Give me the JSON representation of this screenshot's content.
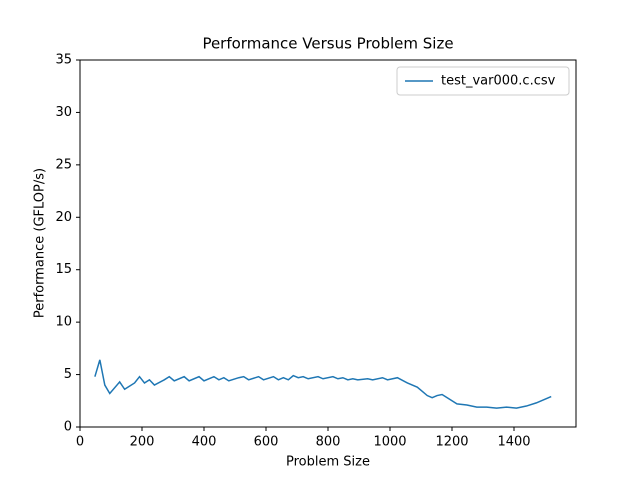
{
  "chart_data": {
    "type": "line",
    "title": "Performance Versus Problem Size",
    "x_label": "Problem Size",
    "y_label": "Performance (GFLOP/s)",
    "x": [
      48,
      64,
      80,
      96,
      128,
      144,
      176,
      192,
      208,
      224,
      240,
      272,
      288,
      304,
      336,
      352,
      384,
      400,
      432,
      448,
      464,
      480,
      512,
      528,
      544,
      576,
      592,
      624,
      640,
      656,
      672,
      688,
      704,
      720,
      736,
      768,
      784,
      816,
      832,
      848,
      864,
      880,
      896,
      928,
      944,
      976,
      992,
      1024,
      1056,
      1088,
      1104,
      1120,
      1136,
      1152,
      1168,
      1184,
      1216,
      1248,
      1280,
      1312,
      1344,
      1376,
      1408,
      1440,
      1472,
      1504,
      1520
    ],
    "series": [
      {
        "name": "test_var000.c.csv",
        "color": "#1f77b4",
        "values": [
          4.8,
          6.4,
          4.0,
          3.2,
          4.3,
          3.6,
          4.2,
          4.8,
          4.2,
          4.5,
          4.0,
          4.5,
          4.8,
          4.4,
          4.8,
          4.4,
          4.8,
          4.4,
          4.8,
          4.5,
          4.7,
          4.4,
          4.7,
          4.8,
          4.5,
          4.8,
          4.5,
          4.8,
          4.5,
          4.7,
          4.5,
          4.9,
          4.7,
          4.8,
          4.6,
          4.8,
          4.6,
          4.8,
          4.6,
          4.7,
          4.5,
          4.6,
          4.5,
          4.6,
          4.5,
          4.7,
          4.5,
          4.7,
          4.2,
          3.8,
          3.4,
          3.0,
          2.8,
          3.0,
          3.1,
          2.8,
          2.2,
          2.1,
          1.9,
          1.9,
          1.8,
          1.9,
          1.8,
          2.0,
          2.3,
          2.7,
          2.9
        ]
      }
    ],
    "xlim": [
      0,
      1600
    ],
    "ylim": [
      0,
      35
    ],
    "xticks": [
      0,
      200,
      400,
      600,
      800,
      1000,
      1200,
      1400
    ],
    "yticks": [
      0,
      5,
      10,
      15,
      20,
      25,
      30,
      35
    ],
    "legend": "upper right"
  }
}
